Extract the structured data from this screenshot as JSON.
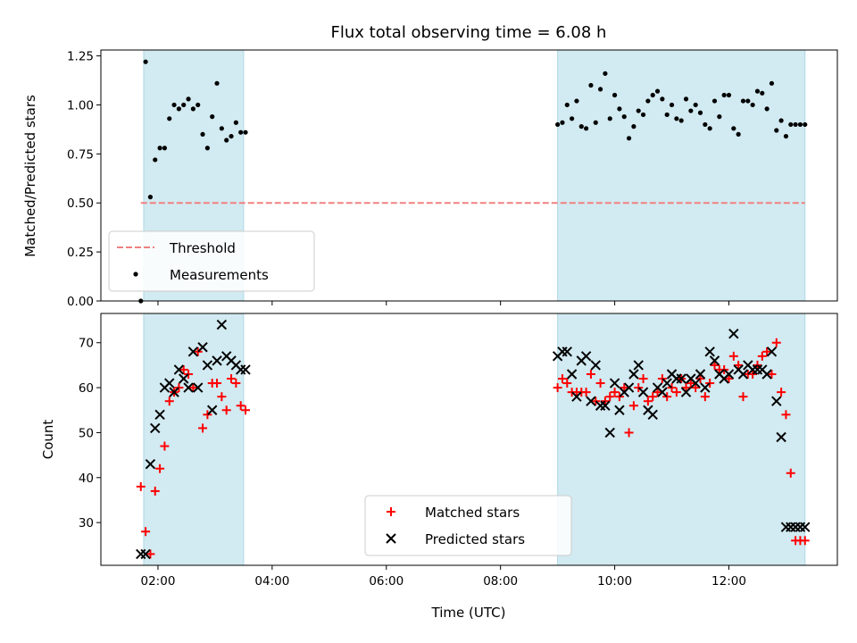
{
  "chart_data": [
    {
      "type": "scatter",
      "title": "Flux total observing time = 6.08 h",
      "xlabel": "",
      "ylabel": "Matched/Predicted stars",
      "x_range_hours": [
        1.0,
        13.9
      ],
      "ylim": [
        0,
        1.28
      ],
      "yticks": [
        "0.00",
        "0.25",
        "0.50",
        "0.75",
        "1.00",
        "1.25"
      ],
      "grid": false,
      "legend_position": "lower-left",
      "legend": [
        "Threshold",
        "Measurements"
      ],
      "colors": {
        "threshold": "#f08080",
        "measurements": "#000000",
        "shade": "#add8e6"
      },
      "shaded_intervals": [
        [
          "01:45",
          "03:30"
        ],
        [
          "09:00",
          "13:20"
        ]
      ],
      "threshold": {
        "name": "Threshold",
        "y": 0.5,
        "x_start": "01:42",
        "x_end": "13:20"
      },
      "series": [
        {
          "name": "Measurements",
          "x": [
            "01:42",
            "01:47",
            "01:52",
            "01:57",
            "02:02",
            "02:07",
            "02:12",
            "02:17",
            "02:22",
            "02:27",
            "02:32",
            "02:37",
            "02:42",
            "02:47",
            "02:52",
            "02:57",
            "03:02",
            "03:07",
            "03:12",
            "03:17",
            "03:22",
            "03:27",
            "03:32",
            "09:00",
            "09:05",
            "09:10",
            "09:15",
            "09:20",
            "09:25",
            "09:30",
            "09:35",
            "09:40",
            "09:45",
            "09:50",
            "09:55",
            "10:00",
            "10:05",
            "10:10",
            "10:15",
            "10:20",
            "10:25",
            "10:30",
            "10:35",
            "10:40",
            "10:45",
            "10:50",
            "10:55",
            "11:00",
            "11:05",
            "11:10",
            "11:15",
            "11:20",
            "11:25",
            "11:30",
            "11:35",
            "11:40",
            "11:45",
            "11:50",
            "11:55",
            "12:00",
            "12:05",
            "12:10",
            "12:15",
            "12:20",
            "12:25",
            "12:30",
            "12:35",
            "12:40",
            "12:45",
            "12:50",
            "12:55",
            "13:00",
            "13:05",
            "13:10",
            "13:15",
            "13:20"
          ],
          "y": [
            0.0,
            1.22,
            0.53,
            0.72,
            0.78,
            0.78,
            0.93,
            1.0,
            0.98,
            1.0,
            1.03,
            0.98,
            1.0,
            0.85,
            0.78,
            0.94,
            1.11,
            0.88,
            0.82,
            0.84,
            0.91,
            0.86,
            0.86,
            0.9,
            0.91,
            1.0,
            0.93,
            1.02,
            0.89,
            0.88,
            1.1,
            0.91,
            1.08,
            1.16,
            0.93,
            1.05,
            0.98,
            0.94,
            0.83,
            0.89,
            0.97,
            0.95,
            1.02,
            1.05,
            1.07,
            1.03,
            0.95,
            1.0,
            0.93,
            0.92,
            1.03,
            0.97,
            1.0,
            0.96,
            0.9,
            0.88,
            1.02,
            0.94,
            1.05,
            1.05,
            0.88,
            0.85,
            1.02,
            1.02,
            1.0,
            1.07,
            1.06,
            0.98,
            1.11,
            0.87,
            0.92,
            0.84,
            0.9,
            0.9,
            0.9,
            0.9
          ]
        }
      ]
    },
    {
      "type": "scatter",
      "title": "",
      "xlabel": "Time (UTC)",
      "ylabel": "Count",
      "x_range_hours": [
        1.0,
        13.9
      ],
      "xticks": [
        "02:00",
        "04:00",
        "06:00",
        "08:00",
        "10:00",
        "12:00"
      ],
      "ylim": [
        20.5,
        76.5
      ],
      "yticks": [
        "30",
        "40",
        "50",
        "60",
        "70"
      ],
      "grid": false,
      "legend_position": "bottom-center",
      "legend": [
        "Matched stars",
        "Predicted stars"
      ],
      "colors": {
        "matched": "#ff0000",
        "predicted": "#000000",
        "shade": "#add8e6"
      },
      "shaded_intervals": [
        [
          "01:45",
          "03:30"
        ],
        [
          "09:00",
          "13:20"
        ]
      ],
      "series": [
        {
          "name": "Matched stars",
          "x": [
            "01:42",
            "01:47",
            "01:52",
            "01:57",
            "02:02",
            "02:07",
            "02:12",
            "02:17",
            "02:22",
            "02:27",
            "02:32",
            "02:37",
            "02:42",
            "02:47",
            "02:52",
            "02:57",
            "03:02",
            "03:07",
            "03:12",
            "03:17",
            "03:22",
            "03:27",
            "03:32",
            "09:00",
            "09:05",
            "09:10",
            "09:15",
            "09:20",
            "09:25",
            "09:30",
            "09:35",
            "09:40",
            "09:45",
            "09:50",
            "09:55",
            "10:00",
            "10:05",
            "10:10",
            "10:15",
            "10:20",
            "10:25",
            "10:30",
            "10:35",
            "10:40",
            "10:45",
            "10:50",
            "10:55",
            "11:00",
            "11:05",
            "11:10",
            "11:15",
            "11:20",
            "11:25",
            "11:30",
            "11:35",
            "11:40",
            "11:45",
            "11:50",
            "11:55",
            "12:00",
            "12:05",
            "12:10",
            "12:15",
            "12:20",
            "12:25",
            "12:30",
            "12:35",
            "12:40",
            "12:45",
            "12:50",
            "12:55",
            "13:00",
            "13:05",
            "13:10",
            "13:15",
            "13:20"
          ],
          "y": [
            38,
            28,
            23,
            37,
            42,
            47,
            57,
            59,
            60,
            64,
            63,
            60,
            68,
            51,
            54,
            61,
            61,
            58,
            55,
            62,
            61,
            56,
            55,
            60,
            62,
            61,
            59,
            59,
            59,
            59,
            63,
            57,
            61,
            57,
            58,
            59,
            58,
            60,
            50,
            56,
            60,
            62,
            57,
            58,
            59,
            62,
            58,
            60,
            59,
            62,
            60,
            61,
            60,
            62,
            58,
            61,
            65,
            64,
            64,
            62,
            67,
            65,
            58,
            63,
            63,
            65,
            67,
            68,
            63,
            70,
            59,
            54,
            41,
            26,
            26,
            26
          ]
        },
        {
          "name": "Predicted stars",
          "x": [
            "01:42",
            "01:47",
            "01:52",
            "01:57",
            "02:02",
            "02:07",
            "02:12",
            "02:17",
            "02:22",
            "02:27",
            "02:32",
            "02:37",
            "02:42",
            "02:47",
            "02:52",
            "02:57",
            "03:02",
            "03:07",
            "03:12",
            "03:17",
            "03:22",
            "03:27",
            "03:32",
            "09:00",
            "09:05",
            "09:10",
            "09:15",
            "09:20",
            "09:25",
            "09:30",
            "09:35",
            "09:40",
            "09:45",
            "09:50",
            "09:55",
            "10:00",
            "10:05",
            "10:10",
            "10:15",
            "10:20",
            "10:25",
            "10:30",
            "10:35",
            "10:40",
            "10:45",
            "10:50",
            "10:55",
            "11:00",
            "11:05",
            "11:10",
            "11:15",
            "11:20",
            "11:25",
            "11:30",
            "11:35",
            "11:40",
            "11:45",
            "11:50",
            "11:55",
            "12:00",
            "12:05",
            "12:10",
            "12:15",
            "12:20",
            "12:25",
            "12:30",
            "12:35",
            "12:40",
            "12:45",
            "12:50",
            "12:55",
            "13:00",
            "13:05",
            "13:10",
            "13:15",
            "13:20"
          ],
          "y": [
            23,
            23,
            43,
            51,
            54,
            60,
            61,
            59,
            64,
            62,
            60,
            68,
            60,
            69,
            65,
            55,
            66,
            74,
            67,
            66,
            65,
            64,
            64,
            67,
            68,
            68,
            63,
            58,
            66,
            67,
            57,
            65,
            56,
            56,
            50,
            61,
            55,
            59,
            60,
            63,
            65,
            59,
            55,
            54,
            60,
            59,
            61,
            63,
            62,
            62,
            59,
            62,
            61,
            63,
            60,
            68,
            66,
            63,
            62,
            63,
            72,
            64,
            63,
            65,
            64,
            64,
            64,
            63,
            68,
            57,
            49,
            29,
            29,
            29,
            29,
            29
          ]
        }
      ]
    }
  ]
}
